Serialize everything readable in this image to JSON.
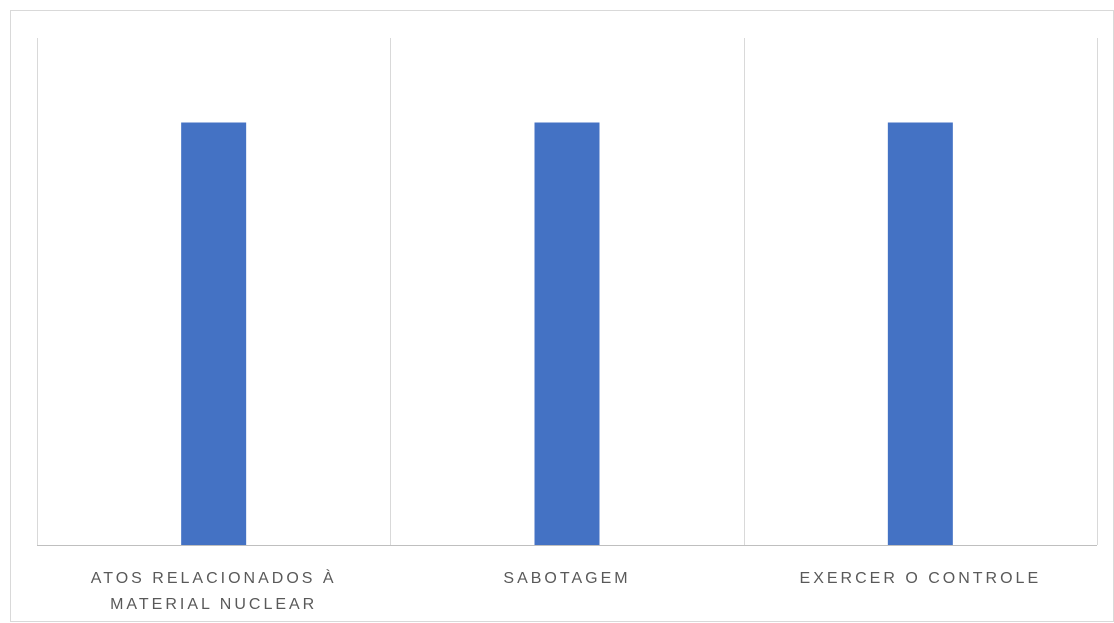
{
  "chart_data": {
    "type": "bar",
    "title": "",
    "xlabel": "",
    "ylabel": "",
    "categories": [
      [
        "ATOS RELACIONADOS À",
        "MATERIAL NUCLEAR"
      ],
      [
        "SABOTAGEM"
      ],
      [
        "EXERCER O CONTROLE"
      ]
    ],
    "values": [
      1,
      1,
      1
    ],
    "ylim": [
      0,
      1.2
    ],
    "grid": "vertical-category-separators",
    "legend": "none",
    "bar_color": "#4472C4",
    "grid_color": "#D9D9D9",
    "axis_color": "#BFBFBF",
    "label_color": "#595959",
    "border_color": "#D9D9D9"
  }
}
